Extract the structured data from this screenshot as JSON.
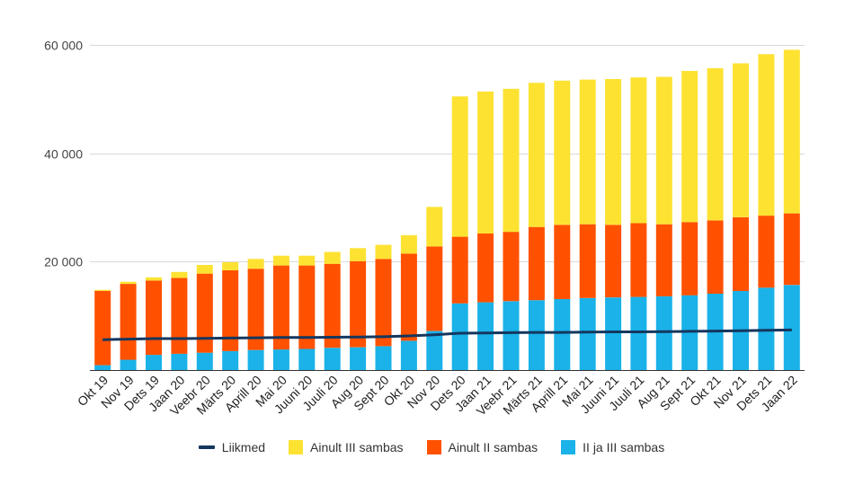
{
  "chart_data": {
    "type": "bar",
    "stacked": true,
    "categories": [
      "Okt 19",
      "Nov 19",
      "Dets 19",
      "Jaan 20",
      "Veebr 20",
      "Märts 20",
      "Aprill 20",
      "Mai 20",
      "Juuni 20",
      "Juuli 20",
      "Aug 20",
      "Sept 20",
      "Okt 20",
      "Nov 20",
      "Dets 20",
      "Jaan 21",
      "Veebr 21",
      "Märts 21",
      "Aprill 21",
      "Mai 21",
      "Juuni 21",
      "Juuli 21",
      "Aug 21",
      "Sept 21",
      "Okt 21",
      "Nov 21",
      "Dets 21",
      "Jaan 22"
    ],
    "series": [
      {
        "name": "II ja III sambas",
        "type": "bar",
        "color": "#1ab2e8",
        "values": [
          900,
          1900,
          2800,
          3000,
          3200,
          3500,
          3700,
          3800,
          3900,
          4100,
          4200,
          4400,
          5400,
          7200,
          12300,
          12500,
          12700,
          12900,
          13100,
          13300,
          13400,
          13500,
          13600,
          13800,
          14100,
          14600,
          15200,
          15700
        ]
      },
      {
        "name": "Ainult II sambas",
        "type": "bar",
        "color": "#ff5100",
        "values": [
          13700,
          14000,
          13700,
          14000,
          14600,
          14900,
          15000,
          15500,
          15400,
          15500,
          15900,
          16100,
          16100,
          15600,
          12300,
          12700,
          12800,
          13500,
          13700,
          13600,
          13400,
          13600,
          13300,
          13500,
          13500,
          13600,
          13300,
          13200
        ]
      },
      {
        "name": "Ainult III sambas",
        "type": "bar",
        "color": "#fde232",
        "values": [
          200,
          400,
          600,
          1100,
          1600,
          1500,
          1800,
          1800,
          1800,
          2200,
          2400,
          2600,
          3400,
          7300,
          25900,
          26200,
          26400,
          26600,
          26600,
          26700,
          26900,
          26900,
          27200,
          27900,
          28100,
          28400,
          29800,
          30200
        ]
      },
      {
        "name": "Liikmed",
        "type": "line",
        "color": "#14375e",
        "values": [
          5600,
          5700,
          5800,
          5800,
          5850,
          5900,
          5950,
          6000,
          6000,
          6050,
          6100,
          6150,
          6300,
          6500,
          6800,
          6850,
          6900,
          6950,
          6950,
          7000,
          7050,
          7050,
          7100,
          7150,
          7200,
          7250,
          7350,
          7400
        ]
      }
    ],
    "legend_order": [
      "Liikmed",
      "Ainult III sambas",
      "Ainult II sambas",
      "II ja III sambas"
    ],
    "y_ticks": [
      {
        "value": 20000,
        "label": "20 000"
      },
      {
        "value": 40000,
        "label": "40 000"
      },
      {
        "value": 60000,
        "label": "60 000"
      }
    ],
    "ylim": [
      0,
      60000
    ],
    "grid": true,
    "legend_position": "bottom",
    "title": "",
    "xlabel": "",
    "ylabel": ""
  }
}
